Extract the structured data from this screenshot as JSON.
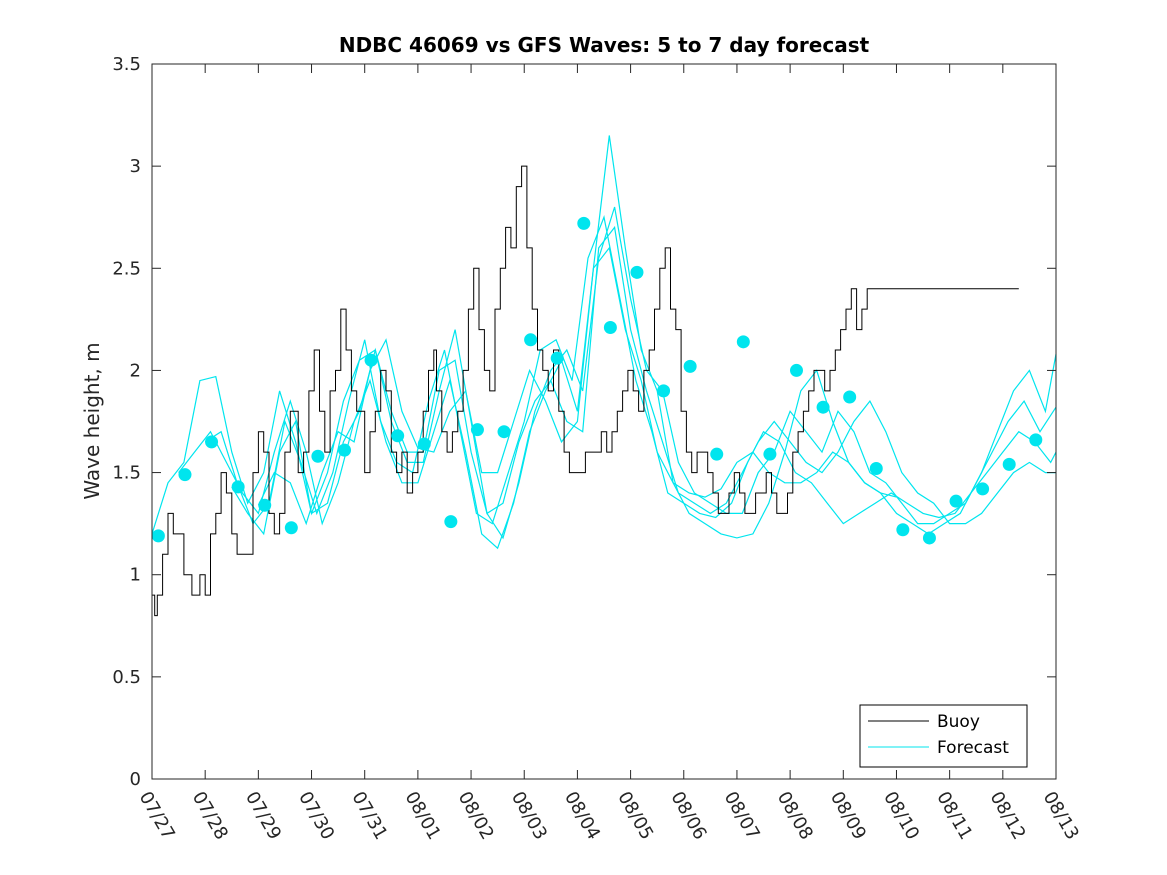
{
  "chart_data": {
    "type": "line",
    "title": "NDBC 46069 vs GFS Waves: 5 to 7 day forecast",
    "xlabel": "",
    "ylabel": "Wave height, m",
    "xlim": [
      0,
      17
    ],
    "ylim": [
      0,
      3.5
    ],
    "x_tick_labels": [
      "07/27",
      "07/28",
      "07/29",
      "07/30",
      "07/31",
      "08/01",
      "08/02",
      "08/03",
      "08/04",
      "08/05",
      "08/06",
      "08/07",
      "08/08",
      "08/09",
      "08/10",
      "08/11",
      "08/12",
      "08/13"
    ],
    "y_ticks": [
      "0",
      "0.5",
      "1",
      "1.5",
      "2",
      "2.5",
      "3",
      "3.5"
    ],
    "grid": false,
    "legend_position": "bottom-right",
    "legend": [
      "Buoy",
      "Forecast"
    ],
    "colors": {
      "buoy": "#000000",
      "forecast": "#00e5ee",
      "axis": "#262626"
    },
    "buoy": {
      "name": "Buoy",
      "x": [
        0,
        0.05,
        0.1,
        0.2,
        0.3,
        0.4,
        0.5,
        0.6,
        0.75,
        0.9,
        1.0,
        1.1,
        1.2,
        1.3,
        1.4,
        1.5,
        1.6,
        1.75,
        1.9,
        2.0,
        2.1,
        2.2,
        2.3,
        2.4,
        2.5,
        2.6,
        2.75,
        2.85,
        2.95,
        3.05,
        3.15,
        3.25,
        3.35,
        3.45,
        3.55,
        3.65,
        3.75,
        3.85,
        4.0,
        4.1,
        4.2,
        4.3,
        4.4,
        4.5,
        4.6,
        4.7,
        4.8,
        4.9,
        5.0,
        5.1,
        5.2,
        5.3,
        5.35,
        5.45,
        5.55,
        5.65,
        5.75,
        5.85,
        5.95,
        6.05,
        6.15,
        6.25,
        6.35,
        6.45,
        6.55,
        6.65,
        6.75,
        6.85,
        6.95,
        7.05,
        7.15,
        7.25,
        7.35,
        7.45,
        7.55,
        7.65,
        7.75,
        7.85,
        7.95,
        8.05,
        8.15,
        8.25,
        8.35,
        8.45,
        8.55,
        8.65,
        8.75,
        8.85,
        8.95,
        9.05,
        9.15,
        9.25,
        9.35,
        9.45,
        9.55,
        9.65,
        9.75,
        9.85,
        9.95,
        10.05,
        10.15,
        10.25,
        10.35,
        10.45,
        10.55,
        10.65,
        10.75,
        10.85,
        10.95,
        11.05,
        11.15,
        11.25,
        11.35,
        11.45,
        11.55,
        11.65,
        11.75,
        11.85,
        11.95,
        12.05,
        12.15,
        12.25,
        12.35,
        12.45,
        12.55,
        12.65,
        12.75,
        12.85,
        12.95,
        13.05,
        13.15,
        13.25,
        13.35,
        13.45,
        13.55,
        13.65,
        13.75,
        13.85,
        13.95,
        14.05,
        14.15,
        14.25,
        14.35,
        14.45,
        14.55,
        14.65,
        14.75,
        14.85,
        14.95,
        15.05,
        15.15,
        15.25,
        15.35,
        15.45,
        15.55,
        15.65,
        15.75,
        15.85,
        15.95,
        16.05,
        16.15,
        16.25,
        16.3
      ],
      "y": [
        0.9,
        0.8,
        0.9,
        1.1,
        1.3,
        1.2,
        1.2,
        1.0,
        0.9,
        1.0,
        0.9,
        1.2,
        1.3,
        1.5,
        1.4,
        1.2,
        1.1,
        1.1,
        1.5,
        1.7,
        1.6,
        1.3,
        1.2,
        1.3,
        1.6,
        1.8,
        1.5,
        1.6,
        1.9,
        2.1,
        1.8,
        1.6,
        1.9,
        2.0,
        2.3,
        2.1,
        1.9,
        1.8,
        1.5,
        1.7,
        1.8,
        2.0,
        1.9,
        1.6,
        1.5,
        1.6,
        1.4,
        1.5,
        1.6,
        1.8,
        2.0,
        2.1,
        1.9,
        1.7,
        1.6,
        1.7,
        1.8,
        2.0,
        2.3,
        2.5,
        2.2,
        2.0,
        1.9,
        2.3,
        2.5,
        2.7,
        2.6,
        2.9,
        3.0,
        2.6,
        2.3,
        2.1,
        2.0,
        1.9,
        2.1,
        1.8,
        1.6,
        1.5,
        1.5,
        1.5,
        1.6,
        1.6,
        1.6,
        1.7,
        1.6,
        1.7,
        1.8,
        1.9,
        2.0,
        1.9,
        1.8,
        2.0,
        2.1,
        2.3,
        2.5,
        2.6,
        2.3,
        2.2,
        1.8,
        1.6,
        1.5,
        1.6,
        1.6,
        1.5,
        1.4,
        1.3,
        1.3,
        1.4,
        1.5,
        1.4,
        1.3,
        1.3,
        1.4,
        1.4,
        1.5,
        1.4,
        1.3,
        1.3,
        1.4,
        1.6,
        1.7,
        1.8,
        1.9,
        2.0,
        2.0,
        1.9,
        2.0,
        2.1,
        2.2,
        2.3,
        2.4,
        2.2,
        2.3,
        2.4,
        2.4,
        2.4,
        2.4,
        2.4,
        2.4,
        2.4,
        2.4,
        2.4,
        2.4,
        2.4,
        2.4,
        2.4,
        2.4,
        2.4,
        2.4,
        2.4,
        2.4,
        2.4,
        2.4,
        2.4,
        2.4,
        2.4,
        2.4,
        2.4,
        2.4,
        2.4,
        2.4,
        2.4,
        2.4
      ]
    },
    "forecast_series": [
      {
        "x": [
          0,
          0.3,
          0.6,
          0.9,
          1.2,
          1.5,
          1.8,
          2.1,
          2.4,
          2.7,
          3.0,
          3.3,
          3.6,
          3.9,
          4.2,
          4.5,
          4.8,
          5.1,
          5.4,
          5.7,
          6.0,
          6.3,
          6.6,
          6.9,
          7.2,
          7.5,
          7.8,
          8.1,
          8.4,
          8.7,
          9.0,
          9.3,
          9.6,
          9.9,
          10.2,
          10.5,
          10.8,
          11.1,
          11.4,
          11.7,
          12.0,
          12.3,
          12.6,
          12.9,
          13.2,
          13.5,
          13.8,
          14.1,
          14.4,
          14.7,
          15.0,
          15.3,
          15.6,
          15.9,
          16.2,
          16.5,
          16.8,
          17.0
        ],
        "y": [
          1.2,
          1.45,
          1.55,
          1.95,
          1.97,
          1.6,
          1.35,
          1.5,
          1.9,
          1.65,
          1.3,
          1.5,
          1.85,
          2.05,
          2.1,
          1.75,
          1.55,
          1.55,
          1.9,
          2.2,
          1.75,
          1.3,
          1.18,
          1.45,
          1.8,
          2.0,
          2.1,
          1.9,
          2.55,
          2.8,
          2.35,
          2.0,
          1.9,
          1.55,
          1.4,
          1.35,
          1.3,
          1.3,
          1.5,
          1.6,
          1.8,
          1.7,
          1.6,
          1.8,
          1.7,
          1.5,
          1.45,
          1.35,
          1.25,
          1.25,
          1.3,
          1.35,
          1.5,
          1.7,
          1.9,
          2.0,
          1.8,
          2.08
        ]
      },
      {
        "x": [
          0.5,
          0.8,
          1.1,
          1.4,
          1.7,
          2.0,
          2.3,
          2.6,
          2.9,
          3.2,
          3.5,
          3.8,
          4.1,
          4.4,
          4.7,
          5.0,
          5.3,
          5.6,
          5.9,
          6.2,
          6.5,
          6.8,
          7.1,
          7.4,
          7.7,
          8.0,
          8.3,
          8.6,
          8.9,
          9.2,
          9.5,
          9.8,
          10.1,
          10.4,
          10.7,
          11.0,
          11.3,
          11.6,
          11.9,
          12.2,
          12.5,
          12.8,
          13.1,
          13.4,
          13.7,
          14.0,
          14.3,
          14.6,
          14.9,
          15.2,
          15.5,
          15.8,
          16.1,
          16.4,
          16.7,
          17.0
        ],
        "y": [
          1.5,
          1.6,
          1.7,
          1.55,
          1.4,
          1.3,
          1.6,
          1.85,
          1.6,
          1.25,
          1.45,
          1.75,
          1.95,
          1.65,
          1.45,
          1.45,
          1.7,
          1.95,
          1.6,
          1.2,
          1.13,
          1.35,
          1.7,
          1.9,
          2.05,
          1.8,
          2.5,
          3.15,
          2.6,
          2.1,
          1.9,
          1.45,
          1.3,
          1.25,
          1.2,
          1.18,
          1.2,
          1.35,
          1.6,
          1.9,
          2.0,
          1.75,
          1.55,
          1.45,
          1.4,
          1.3,
          1.25,
          1.2,
          1.25,
          1.3,
          1.45,
          1.6,
          1.75,
          1.85,
          1.7,
          1.82
        ]
      },
      {
        "x": [
          1.0,
          1.3,
          1.6,
          1.9,
          2.2,
          2.5,
          2.8,
          3.1,
          3.4,
          3.7,
          4.0,
          4.3,
          4.6,
          4.9,
          5.2,
          5.5,
          5.8,
          6.1,
          6.4,
          6.7,
          7.0,
          7.3,
          7.6,
          7.9,
          8.2,
          8.5,
          8.8,
          9.1,
          9.4,
          9.7,
          10.0,
          10.3,
          10.6,
          10.9,
          11.2,
          11.5,
          11.8,
          12.1,
          12.4,
          12.7,
          13.0,
          13.3,
          13.6,
          13.9,
          14.2,
          14.5,
          14.8,
          15.1,
          15.4,
          15.7,
          16.0,
          16.3,
          16.6,
          16.9,
          17.0
        ],
        "y": [
          1.65,
          1.7,
          1.45,
          1.25,
          1.35,
          1.75,
          1.55,
          1.3,
          1.5,
          1.85,
          2.15,
          1.75,
          1.55,
          1.5,
          1.85,
          2.1,
          1.7,
          1.3,
          1.25,
          1.5,
          1.75,
          2.1,
          2.15,
          1.95,
          2.55,
          2.75,
          2.35,
          1.95,
          1.7,
          1.4,
          1.35,
          1.3,
          1.28,
          1.35,
          1.55,
          1.7,
          1.65,
          1.5,
          1.45,
          1.35,
          1.25,
          1.3,
          1.35,
          1.4,
          1.35,
          1.3,
          1.28,
          1.3,
          1.4,
          1.5,
          1.6,
          1.7,
          1.65,
          1.55,
          1.6
        ]
      },
      {
        "x": [
          1.5,
          1.8,
          2.1,
          2.4,
          2.7,
          3.0,
          3.3,
          3.6,
          3.9,
          4.2,
          4.5,
          4.8,
          5.1,
          5.4,
          5.7,
          6.0,
          6.3,
          6.6,
          6.9,
          7.2,
          7.5,
          7.8,
          8.1,
          8.4,
          8.7,
          9.0,
          9.3,
          9.6,
          9.9,
          10.2,
          10.5,
          10.8,
          11.1,
          11.4,
          11.7,
          12.0,
          12.3,
          12.6,
          12.9,
          13.2,
          13.5,
          13.8,
          14.1,
          14.4,
          14.7,
          15.0,
          15.3,
          15.6,
          15.9,
          16.2,
          16.5,
          16.8,
          17.0
        ],
        "y": [
          1.43,
          1.3,
          1.2,
          1.6,
          1.75,
          1.3,
          1.35,
          1.65,
          1.8,
          2.1,
          1.8,
          1.6,
          1.6,
          2.0,
          2.05,
          1.6,
          1.3,
          1.35,
          1.65,
          1.85,
          1.95,
          1.75,
          1.7,
          2.6,
          2.7,
          2.2,
          1.9,
          1.65,
          1.4,
          1.35,
          1.3,
          1.35,
          1.5,
          1.65,
          1.75,
          1.65,
          1.55,
          1.5,
          1.6,
          1.75,
          1.85,
          1.7,
          1.5,
          1.4,
          1.35,
          1.25,
          1.25,
          1.3,
          1.4,
          1.5,
          1.55,
          1.5,
          1.5
        ]
      },
      {
        "x": [
          2.0,
          2.3,
          2.6,
          2.9,
          3.2,
          3.5,
          3.8,
          4.1,
          4.4,
          4.7,
          5.0,
          5.3,
          5.6,
          5.9,
          6.2,
          6.5,
          6.8,
          7.1,
          7.4,
          7.7,
          8.0,
          8.3,
          8.6,
          8.9,
          9.2,
          9.5,
          9.8,
          10.1,
          10.4,
          10.7,
          11.0,
          11.3,
          11.6,
          11.9,
          12.2,
          12.5,
          12.8,
          13.1,
          13.4,
          13.7,
          14.0
        ],
        "y": [
          1.34,
          1.5,
          1.45,
          1.25,
          1.5,
          1.7,
          1.65,
          2.0,
          2.15,
          1.8,
          1.62,
          1.6,
          1.8,
          1.9,
          1.5,
          1.5,
          1.75,
          2.0,
          1.85,
          1.65,
          1.75,
          2.5,
          2.6,
          2.2,
          1.95,
          1.6,
          1.45,
          1.4,
          1.38,
          1.42,
          1.55,
          1.6,
          1.5,
          1.45,
          1.45,
          1.5,
          1.6,
          1.55,
          1.45,
          1.4,
          1.38
        ]
      }
    ],
    "forecast_markers": [
      {
        "x": 0.12,
        "y": 1.19
      },
      {
        "x": 0.62,
        "y": 1.49
      },
      {
        "x": 1.12,
        "y": 1.65
      },
      {
        "x": 1.62,
        "y": 1.43
      },
      {
        "x": 2.12,
        "y": 1.34
      },
      {
        "x": 2.62,
        "y": 1.23
      },
      {
        "x": 3.12,
        "y": 1.58
      },
      {
        "x": 3.62,
        "y": 1.61
      },
      {
        "x": 4.12,
        "y": 2.05
      },
      {
        "x": 4.62,
        "y": 1.68
      },
      {
        "x": 5.12,
        "y": 1.64
      },
      {
        "x": 5.62,
        "y": 1.26
      },
      {
        "x": 6.12,
        "y": 1.71
      },
      {
        "x": 6.62,
        "y": 1.7
      },
      {
        "x": 7.12,
        "y": 2.15
      },
      {
        "x": 7.62,
        "y": 2.06
      },
      {
        "x": 8.12,
        "y": 2.72
      },
      {
        "x": 8.62,
        "y": 2.21
      },
      {
        "x": 9.12,
        "y": 2.48
      },
      {
        "x": 9.62,
        "y": 1.9
      },
      {
        "x": 10.12,
        "y": 2.02
      },
      {
        "x": 10.62,
        "y": 1.59
      },
      {
        "x": 11.12,
        "y": 2.14
      },
      {
        "x": 11.62,
        "y": 1.59
      },
      {
        "x": 12.12,
        "y": 2.0
      },
      {
        "x": 12.62,
        "y": 1.82
      },
      {
        "x": 13.12,
        "y": 1.87
      },
      {
        "x": 13.62,
        "y": 1.52
      },
      {
        "x": 14.12,
        "y": 1.22
      },
      {
        "x": 14.62,
        "y": 1.18
      },
      {
        "x": 15.12,
        "y": 1.36
      },
      {
        "x": 15.62,
        "y": 1.42
      },
      {
        "x": 16.12,
        "y": 1.54
      },
      {
        "x": 16.62,
        "y": 1.66
      }
    ]
  }
}
